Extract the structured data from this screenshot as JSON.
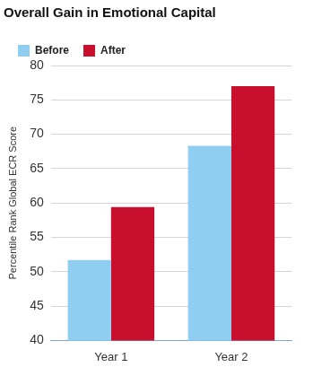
{
  "chart_data": {
    "type": "bar",
    "title": "Overall Gain in Emotional Capital",
    "y_label": "Percentile Rank Global ECR Score",
    "categories": [
      "Year 1",
      "Year 2"
    ],
    "series": [
      {
        "name": "Before",
        "color": "#8fcdf1",
        "values": [
          51.7,
          68.3
        ]
      },
      {
        "name": "After",
        "color": "#c8102e",
        "values": [
          59.4,
          77.0
        ]
      }
    ],
    "ylim": [
      40,
      80
    ],
    "yticks": [
      40,
      45,
      50,
      55,
      60,
      65,
      70,
      75,
      80
    ],
    "grid": true,
    "legend": "top-left"
  }
}
